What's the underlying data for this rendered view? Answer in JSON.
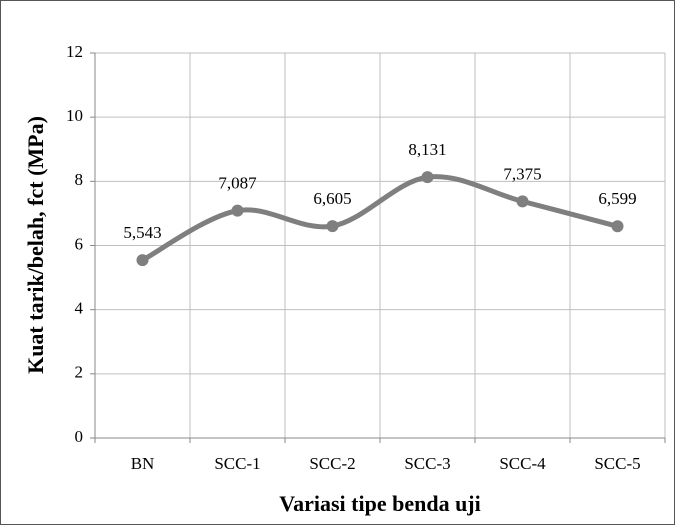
{
  "chart_data": {
    "type": "line",
    "y_label": "Kuat tarik/belah,  fct (MPa)",
    "x_label": "Variasi  tipe benda uji",
    "categories": [
      "BN",
      "SCC-1",
      "SCC-2",
      "SCC-3",
      "SCC-4",
      "SCC-5"
    ],
    "values": [
      5.543,
      7.087,
      6.605,
      8.131,
      7.375,
      6.599
    ],
    "value_labels": [
      "5,543",
      "7,087",
      "6,605",
      "8,131",
      "7,375",
      "6,599"
    ],
    "color": "#7f7f7f",
    "smooth": true,
    "ylim": [
      0,
      12
    ],
    "yticks": [
      0,
      2,
      4,
      6,
      8,
      10,
      12
    ],
    "grid": true
  }
}
